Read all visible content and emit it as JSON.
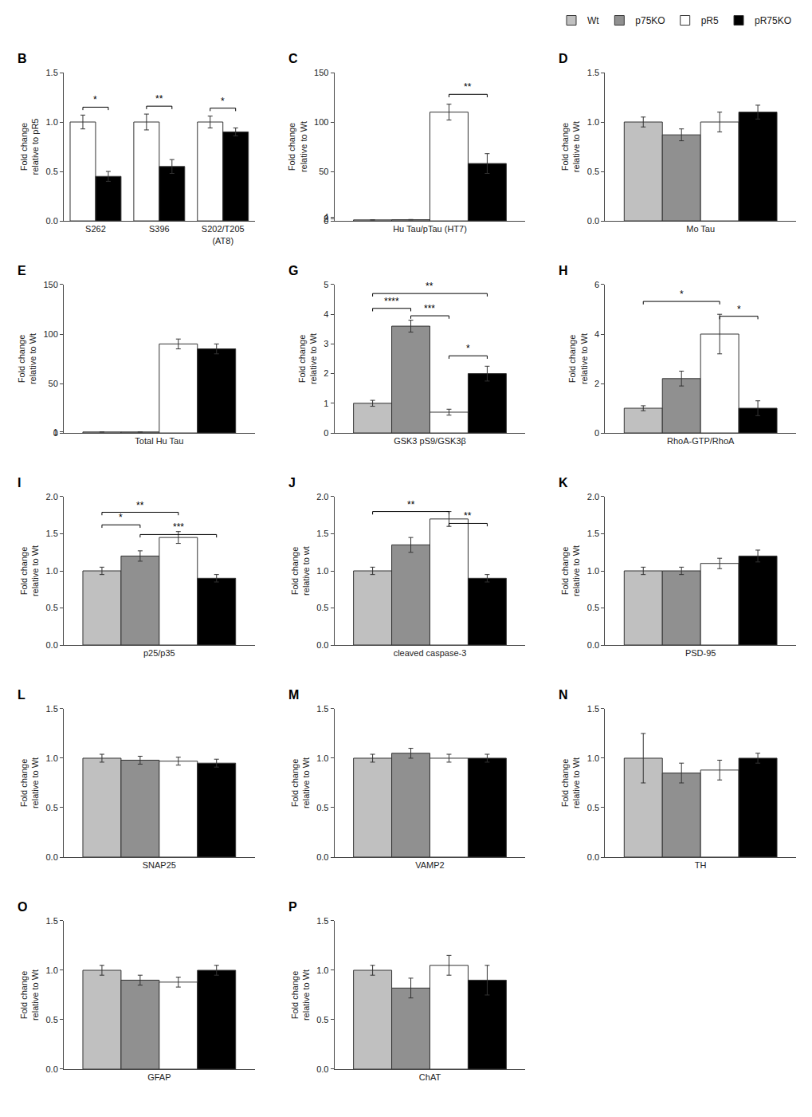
{
  "chart_data": [
    {
      "type": "bar",
      "title": "B",
      "categories": [
        "S262",
        "S396",
        "S202/T205\n(AT8)"
      ],
      "series": [
        {
          "name": "pR5",
          "color": "#ffffff",
          "values": [
            1.0,
            1.0,
            1.0
          ],
          "errors": [
            0.07,
            0.08,
            0.06
          ]
        },
        {
          "name": "pR75KO",
          "color": "#000000",
          "values": [
            0.45,
            0.55,
            0.9
          ],
          "errors": [
            0.05,
            0.07,
            0.04
          ]
        }
      ],
      "ylabel": "Fold change\nrelative to pR5",
      "ylim": [
        0.0,
        1.5
      ],
      "yticks": [
        {
          "value": 0,
          "label": "0.0"
        },
        0.5,
        {
          "value": 1,
          "label": "1.0"
        },
        1.5
      ],
      "grid": false,
      "annotations": [
        {
          "text": "*",
          "category": "S262",
          "between": [
            "pR5",
            "pR75KO"
          ],
          "y": 1.12
        },
        {
          "text": "**",
          "category": "S396",
          "between": [
            "pR5",
            "pR75KO"
          ],
          "y": 1.13
        },
        {
          "text": "*",
          "category": "S202/T205\n(AT8)",
          "between": [
            "pR5",
            "pR75KO"
          ],
          "y": 1.11
        }
      ]
    },
    {
      "type": "bar",
      "title": "C",
      "categories": [
        "Hu Tau/pTau (HT7)"
      ],
      "series": [
        {
          "name": "Wt",
          "color": "#c0c0c0",
          "values": [
            1.0
          ],
          "errors": [
            0.2
          ]
        },
        {
          "name": "p75KO",
          "color": "#909090",
          "values": [
            1.2
          ],
          "errors": [
            0.2
          ]
        },
        {
          "name": "pR5",
          "color": "#ffffff",
          "values": [
            110.0
          ],
          "errors": [
            8.0
          ]
        },
        {
          "name": "pR75KO",
          "color": "#000000",
          "values": [
            58.0
          ],
          "errors": [
            10.0
          ]
        }
      ],
      "ylabel": "Fold change\nrelative to Wt",
      "ylim": [
        0,
        150
      ],
      "yticks": [
        0,
        2,
        4,
        50,
        100,
        150
      ],
      "grid": false,
      "legend": "upper right",
      "annotations": [
        {
          "text": "**",
          "between": [
            "pR5",
            "pR75KO"
          ],
          "y": 125
        }
      ]
    },
    {
      "type": "bar",
      "title": "D",
      "categories": [
        "Mo Tau"
      ],
      "series": [
        {
          "name": "Wt",
          "color": "#c0c0c0",
          "values": [
            1.0
          ],
          "errors": [
            0.05
          ]
        },
        {
          "name": "p75KO",
          "color": "#909090",
          "values": [
            0.87
          ],
          "errors": [
            0.06
          ]
        },
        {
          "name": "pR5",
          "color": "#ffffff",
          "values": [
            1.0
          ],
          "errors": [
            0.1
          ]
        },
        {
          "name": "pR75KO",
          "color": "#000000",
          "values": [
            1.1
          ],
          "errors": [
            0.07
          ]
        }
      ],
      "ylabel": "Fold change\nrelative to Wt",
      "ylim": [
        0.0,
        1.5
      ],
      "yticks": [
        {
          "value": 0,
          "label": "0.0"
        },
        0.5,
        {
          "value": 1,
          "label": "1.0"
        },
        1.5
      ],
      "grid": false
    },
    {
      "type": "bar",
      "title": "E",
      "categories": [
        "Total Hu Tau"
      ],
      "series": [
        {
          "name": "Wt",
          "color": "#c0c0c0",
          "values": [
            1.0
          ],
          "errors": [
            0.1
          ]
        },
        {
          "name": "p75KO",
          "color": "#909090",
          "values": [
            1.0
          ],
          "errors": [
            0.1
          ]
        },
        {
          "name": "pR5",
          "color": "#ffffff",
          "values": [
            90.0
          ],
          "errors": [
            5.0
          ]
        },
        {
          "name": "pR75KO",
          "color": "#000000",
          "values": [
            85.0
          ],
          "errors": [
            5.0
          ]
        }
      ],
      "ylabel": "Fold change\nrelative to Wt",
      "ylim": [
        0,
        150
      ],
      "yticks": [
        0,
        1,
        50,
        100,
        150
      ],
      "grid": false
    },
    {
      "type": "bar",
      "title": "G",
      "categories": [
        "GSK3 pS9/GSK3β"
      ],
      "series": [
        {
          "name": "Wt",
          "color": "#c0c0c0",
          "values": [
            1.0
          ],
          "errors": [
            0.1
          ]
        },
        {
          "name": "p75KO",
          "color": "#909090",
          "values": [
            3.6
          ],
          "errors": [
            0.2
          ]
        },
        {
          "name": "pR5",
          "color": "#ffffff",
          "values": [
            0.7
          ],
          "errors": [
            0.1
          ]
        },
        {
          "name": "pR75KO",
          "color": "#000000",
          "values": [
            2.0
          ],
          "errors": [
            0.25
          ]
        }
      ],
      "ylabel": "Fold change\nrelative to Wt",
      "ylim": [
        0,
        5
      ],
      "yticks": [
        0,
        1,
        2,
        3,
        4,
        5
      ],
      "grid": false,
      "annotations": [
        {
          "text": "****",
          "between": [
            "Wt",
            "p75KO"
          ],
          "y": 4.1
        },
        {
          "text": "**",
          "between": [
            "Wt",
            "pR75KO"
          ],
          "y": 4.6
        },
        {
          "text": "***",
          "between": [
            "p75KO",
            "pR5"
          ],
          "y": 3.85
        },
        {
          "text": "*",
          "between": [
            "pR5",
            "pR75KO"
          ],
          "y": 2.5
        }
      ]
    },
    {
      "type": "bar",
      "title": "H",
      "categories": [
        "RhoA-GTP/RhoA"
      ],
      "series": [
        {
          "name": "Wt",
          "color": "#c0c0c0",
          "values": [
            1.0
          ],
          "errors": [
            0.1
          ]
        },
        {
          "name": "p75KO",
          "color": "#909090",
          "values": [
            2.2
          ],
          "errors": [
            0.3
          ]
        },
        {
          "name": "pR5",
          "color": "#ffffff",
          "values": [
            4.0
          ],
          "errors": [
            0.8
          ]
        },
        {
          "name": "pR75KO",
          "color": "#000000",
          "values": [
            1.0
          ],
          "errors": [
            0.3
          ]
        }
      ],
      "ylabel": "Fold change\nrelative to Wt",
      "ylim": [
        0,
        6
      ],
      "yticks": [
        0,
        2,
        4,
        6
      ],
      "grid": false,
      "annotations": [
        {
          "text": "*",
          "between": [
            "Wt",
            "pR5"
          ],
          "y": 5.2
        },
        {
          "text": "*",
          "between": [
            "pR5",
            "pR75KO"
          ],
          "y": 4.6
        }
      ]
    },
    {
      "type": "bar",
      "title": "I",
      "categories": [
        "p25/p35"
      ],
      "series": [
        {
          "name": "Wt",
          "color": "#c0c0c0",
          "values": [
            1.0
          ],
          "errors": [
            0.05
          ]
        },
        {
          "name": "p75KO",
          "color": "#909090",
          "values": [
            1.2
          ],
          "errors": [
            0.07
          ]
        },
        {
          "name": "pR5",
          "color": "#ffffff",
          "values": [
            1.45
          ],
          "errors": [
            0.08
          ]
        },
        {
          "name": "pR75KO",
          "color": "#000000",
          "values": [
            0.9
          ],
          "errors": [
            0.05
          ]
        }
      ],
      "ylabel": "Fold change\nrelative to Wt",
      "ylim": [
        0.0,
        2.0
      ],
      "yticks": [
        {
          "value": 0,
          "label": "0.0"
        },
        0.5,
        {
          "value": 1,
          "label": "1.0"
        },
        1.5,
        {
          "value": 2,
          "label": "2.0"
        }
      ],
      "grid": false,
      "annotations": [
        {
          "text": "*",
          "between": [
            "Wt",
            "p75KO"
          ],
          "y": 1.58
        },
        {
          "text": "**",
          "between": [
            "Wt",
            "pR5"
          ],
          "y": 1.75
        },
        {
          "text": "***",
          "between": [
            "p75KO",
            "pR75KO"
          ],
          "y": 1.45
        }
      ]
    },
    {
      "type": "bar",
      "title": "J",
      "categories": [
        "cleaved caspase-3"
      ],
      "series": [
        {
          "name": "Wt",
          "color": "#c0c0c0",
          "values": [
            1.0
          ],
          "errors": [
            0.05
          ]
        },
        {
          "name": "p75KO",
          "color": "#909090",
          "values": [
            1.35
          ],
          "errors": [
            0.1
          ]
        },
        {
          "name": "pR5",
          "color": "#ffffff",
          "values": [
            1.7
          ],
          "errors": [
            0.1
          ]
        },
        {
          "name": "pR75KO",
          "color": "#000000",
          "values": [
            0.9
          ],
          "errors": [
            0.05
          ]
        }
      ],
      "ylabel": "Fold change\nrelative to wt",
      "ylim": [
        0.0,
        2.0
      ],
      "yticks": [
        {
          "value": 0,
          "label": "0.0"
        },
        0.5,
        {
          "value": 1,
          "label": "1.0"
        },
        1.5,
        {
          "value": 2,
          "label": "2.0"
        }
      ],
      "grid": false,
      "annotations": [
        {
          "text": "**",
          "between": [
            "Wt",
            "pR5"
          ],
          "y": 1.76
        },
        {
          "text": "**",
          "between": [
            "pR5",
            "pR75KO"
          ],
          "y": 1.6
        }
      ]
    },
    {
      "type": "bar",
      "title": "K",
      "categories": [
        "PSD-95"
      ],
      "series": [
        {
          "name": "Wt",
          "color": "#c0c0c0",
          "values": [
            1.0
          ],
          "errors": [
            0.05
          ]
        },
        {
          "name": "p75KO",
          "color": "#909090",
          "values": [
            1.0
          ],
          "errors": [
            0.05
          ]
        },
        {
          "name": "pR5",
          "color": "#ffffff",
          "values": [
            1.1
          ],
          "errors": [
            0.07
          ]
        },
        {
          "name": "pR75KO",
          "color": "#000000",
          "values": [
            1.2
          ],
          "errors": [
            0.08
          ]
        }
      ],
      "ylabel": "Fold change\nrelative to Wt",
      "ylim": [
        0.0,
        2.0
      ],
      "yticks": [
        {
          "value": 0,
          "label": "0.0"
        },
        0.5,
        {
          "value": 1,
          "label": "1.0"
        },
        1.5,
        {
          "value": 2,
          "label": "2.0"
        }
      ],
      "grid": false
    },
    {
      "type": "bar",
      "title": "L",
      "categories": [
        "SNAP25"
      ],
      "series": [
        {
          "name": "Wt",
          "color": "#c0c0c0",
          "values": [
            1.0
          ],
          "errors": [
            0.04
          ]
        },
        {
          "name": "p75KO",
          "color": "#909090",
          "values": [
            0.98
          ],
          "errors": [
            0.04
          ]
        },
        {
          "name": "pR5",
          "color": "#ffffff",
          "values": [
            0.97
          ],
          "errors": [
            0.04
          ]
        },
        {
          "name": "pR75KO",
          "color": "#000000",
          "values": [
            0.95
          ],
          "errors": [
            0.04
          ]
        }
      ],
      "ylabel": "Fold change\nrelative to Wt",
      "ylim": [
        0.0,
        1.5
      ],
      "yticks": [
        {
          "value": 0,
          "label": "0.0"
        },
        0.5,
        {
          "value": 1,
          "label": "1.0"
        },
        1.5
      ],
      "grid": false
    },
    {
      "type": "bar",
      "title": "M",
      "categories": [
        "VAMP2"
      ],
      "series": [
        {
          "name": "Wt",
          "color": "#c0c0c0",
          "values": [
            1.0
          ],
          "errors": [
            0.04
          ]
        },
        {
          "name": "p75KO",
          "color": "#909090",
          "values": [
            1.05
          ],
          "errors": [
            0.05
          ]
        },
        {
          "name": "pR5",
          "color": "#ffffff",
          "values": [
            1.0
          ],
          "errors": [
            0.04
          ]
        },
        {
          "name": "pR75KO",
          "color": "#000000",
          "values": [
            1.0
          ],
          "errors": [
            0.04
          ]
        }
      ],
      "ylabel": "Fold change\nrelative to Wt",
      "ylim": [
        0.0,
        1.5
      ],
      "yticks": [
        {
          "value": 0,
          "label": "0.0"
        },
        0.5,
        {
          "value": 1,
          "label": "1.0"
        },
        1.5
      ],
      "grid": false
    },
    {
      "type": "bar",
      "title": "N",
      "categories": [
        "TH"
      ],
      "series": [
        {
          "name": "Wt",
          "color": "#c0c0c0",
          "values": [
            1.0
          ],
          "errors": [
            0.25
          ]
        },
        {
          "name": "p75KO",
          "color": "#909090",
          "values": [
            0.85
          ],
          "errors": [
            0.1
          ]
        },
        {
          "name": "pR5",
          "color": "#ffffff",
          "values": [
            0.88
          ],
          "errors": [
            0.1
          ]
        },
        {
          "name": "pR75KO",
          "color": "#000000",
          "values": [
            1.0
          ],
          "errors": [
            0.05
          ]
        }
      ],
      "ylabel": "Fold change\nrelative to Wt",
      "ylim": [
        0.0,
        1.5
      ],
      "yticks": [
        {
          "value": 0,
          "label": "0.0"
        },
        0.5,
        {
          "value": 1,
          "label": "1.0"
        },
        1.5
      ],
      "grid": false
    },
    {
      "type": "bar",
      "title": "O",
      "categories": [
        "GFAP"
      ],
      "series": [
        {
          "name": "Wt",
          "color": "#c0c0c0",
          "values": [
            1.0
          ],
          "errors": [
            0.05
          ]
        },
        {
          "name": "p75KO",
          "color": "#909090",
          "values": [
            0.9
          ],
          "errors": [
            0.05
          ]
        },
        {
          "name": "pR5",
          "color": "#ffffff",
          "values": [
            0.88
          ],
          "errors": [
            0.05
          ]
        },
        {
          "name": "pR75KO",
          "color": "#000000",
          "values": [
            1.0
          ],
          "errors": [
            0.05
          ]
        }
      ],
      "ylabel": "Fold change\nrelative to Wt",
      "ylim": [
        0.0,
        1.5
      ],
      "yticks": [
        {
          "value": 0,
          "label": "0.0"
        },
        0.5,
        {
          "value": 1,
          "label": "1.0"
        },
        1.5
      ],
      "grid": false
    },
    {
      "type": "bar",
      "title": "P",
      "categories": [
        "ChAT"
      ],
      "series": [
        {
          "name": "Wt",
          "color": "#c0c0c0",
          "values": [
            1.0
          ],
          "errors": [
            0.05
          ]
        },
        {
          "name": "p75KO",
          "color": "#909090",
          "values": [
            0.82
          ],
          "errors": [
            0.1
          ]
        },
        {
          "name": "pR5",
          "color": "#ffffff",
          "values": [
            1.05
          ],
          "errors": [
            0.1
          ]
        },
        {
          "name": "pR75KO",
          "color": "#000000",
          "values": [
            0.9
          ],
          "errors": [
            0.15
          ]
        }
      ],
      "ylabel": "Fold change\nrelative to Wt",
      "ylim": [
        0.0,
        1.5
      ],
      "yticks": [
        {
          "value": 0,
          "label": "0.0"
        },
        0.5,
        {
          "value": 1,
          "label": "1.0"
        },
        1.5
      ],
      "grid": false
    }
  ]
}
